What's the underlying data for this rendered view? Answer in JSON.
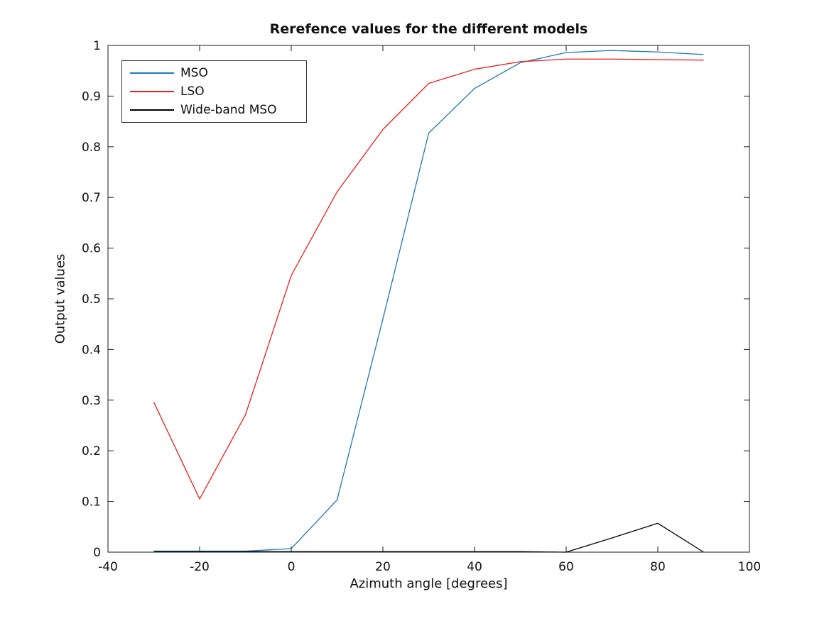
{
  "chart_data": {
    "type": "line",
    "title": "Rerefence values for the different models",
    "xlabel": "Azimuth angle [degrees]",
    "ylabel": "Output values",
    "xlim": [
      -40,
      100
    ],
    "ylim": [
      0,
      1
    ],
    "x_ticks": [
      -40,
      -20,
      0,
      20,
      40,
      60,
      80,
      100
    ],
    "x_tick_labels": [
      "-40",
      "-20",
      "0",
      "20",
      "40",
      "60",
      "80",
      "100"
    ],
    "y_ticks": [
      0,
      0.1,
      0.2,
      0.3,
      0.4,
      0.5,
      0.6,
      0.7,
      0.8,
      0.9,
      1
    ],
    "y_tick_labels": [
      "0",
      "0.1",
      "0.2",
      "0.3",
      "0.4",
      "0.5",
      "0.6",
      "0.7",
      "0.8",
      "0.9",
      "1"
    ],
    "grid": false,
    "legend_position": "upper-left",
    "box": true,
    "tick_direction": "in",
    "x": [
      -30,
      -20,
      -10,
      0,
      10,
      20,
      30,
      40,
      50,
      60,
      70,
      80,
      90
    ],
    "series": [
      {
        "name": "MSO",
        "color": "#1f77b4",
        "values": [
          0.002,
          0.002,
          0.002,
          0.007,
          0.103,
          0.46,
          0.827,
          0.915,
          0.966,
          0.986,
          0.99,
          0.987,
          0.982
        ]
      },
      {
        "name": "LSO",
        "color": "#ee1c1c",
        "values": [
          0.296,
          0.105,
          0.271,
          0.546,
          0.711,
          0.834,
          0.925,
          0.953,
          0.968,
          0.973,
          0.973,
          0.972,
          0.971
        ]
      },
      {
        "name": "Wide-band MSO",
        "color": "#000000",
        "values": [
          0.001,
          0.001,
          0.001,
          0.001,
          0.001,
          0.001,
          0.001,
          0.001,
          0.001,
          0.0,
          0.028,
          0.057,
          0.0
        ]
      }
    ]
  },
  "style": {
    "frame_color": "#1a1a1a",
    "background": "#ffffff",
    "text_color": "#111111"
  }
}
